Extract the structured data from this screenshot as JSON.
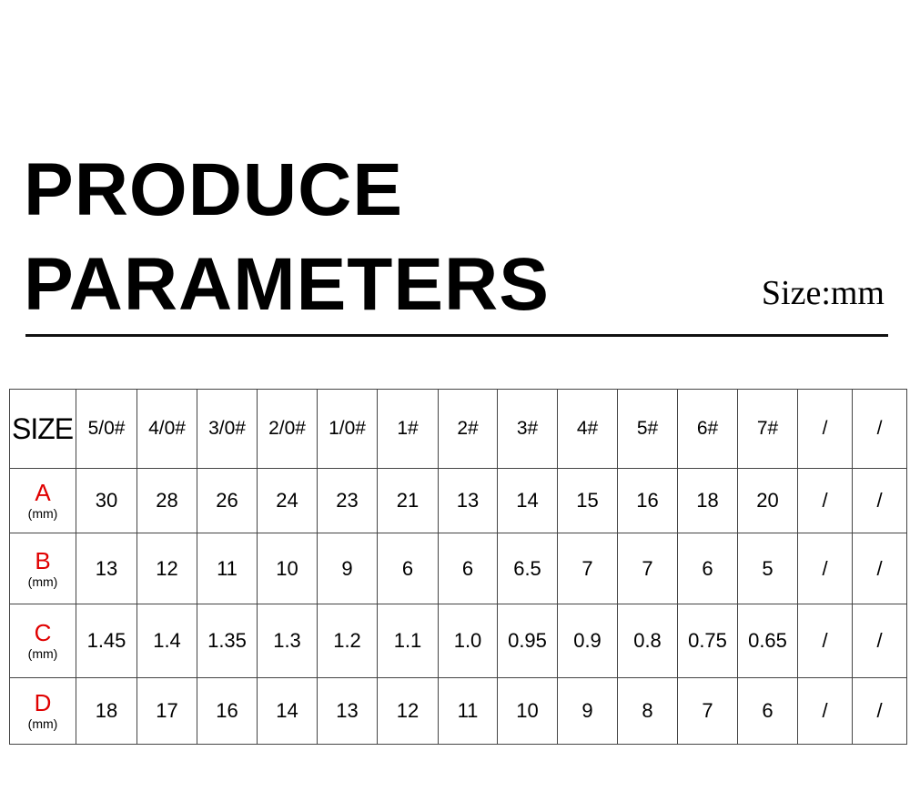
{
  "title_line1": "PRODUCE",
  "title_line2": "PARAMETERS",
  "unit": "Size:mm",
  "colors": {
    "row_label": "#e00000",
    "text": "#000000"
  },
  "table": {
    "header_label": "SIZE",
    "sizes": [
      "5/0#",
      "4/0#",
      "3/0#",
      "2/0#",
      "1/0#",
      "1#",
      "2#",
      "3#",
      "4#",
      "5#",
      "6#",
      "7#",
      "/",
      "/"
    ],
    "rows": [
      {
        "label": "A",
        "unit": "(mm)",
        "values": [
          "30",
          "28",
          "26",
          "24",
          "23",
          "21",
          "13",
          "14",
          "15",
          "16",
          "18",
          "20",
          "/",
          "/"
        ]
      },
      {
        "label": "B",
        "unit": "(mm)",
        "values": [
          "13",
          "12",
          "11",
          "10",
          "9",
          "6",
          "6",
          "6.5",
          "7",
          "7",
          "6",
          "5",
          "/",
          "/"
        ]
      },
      {
        "label": "C",
        "unit": "(mm)",
        "values": [
          "1.45",
          "1.4",
          "1.35",
          "1.3",
          "1.2",
          "1.1",
          "1.0",
          "0.95",
          "0.9",
          "0.8",
          "0.75",
          "0.65",
          "/",
          "/"
        ]
      },
      {
        "label": "D",
        "unit": "(mm)",
        "values": [
          "18",
          "17",
          "16",
          "14",
          "13",
          "12",
          "11",
          "10",
          "9",
          "8",
          "7",
          "6",
          "/",
          "/"
        ]
      }
    ]
  }
}
